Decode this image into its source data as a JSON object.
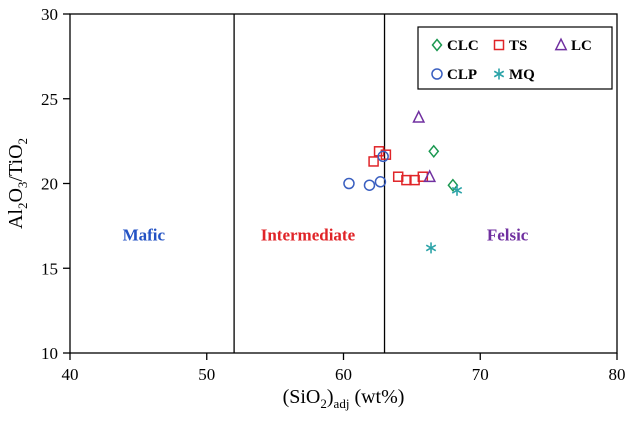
{
  "chart_data": {
    "type": "scatter",
    "title": "",
    "xlabel_parts": [
      {
        "text": "(SiO"
      },
      {
        "text": "2",
        "sub": true
      },
      {
        "text": ")"
      },
      {
        "text": "adj",
        "sub": true
      },
      {
        "text": " (wt%)"
      }
    ],
    "ylabel_parts": [
      {
        "text": "Al"
      },
      {
        "text": "2",
        "sub": true
      },
      {
        "text": "O"
      },
      {
        "text": "3",
        "sub": true
      },
      {
        "text": "/TiO"
      },
      {
        "text": "2",
        "sub": true
      }
    ],
    "xlim": [
      40,
      80
    ],
    "ylim": [
      10,
      30
    ],
    "x_ticks": [
      40,
      50,
      60,
      70,
      80
    ],
    "y_ticks": [
      10,
      15,
      20,
      25,
      30
    ],
    "grid": false,
    "boundary_lines_x": [
      52,
      63
    ],
    "regions": [
      {
        "label": "Mafic",
        "x": 45.4,
        "y": 17.0,
        "color": "#2453c4"
      },
      {
        "label": "Intermediate",
        "x": 57.4,
        "y": 17.0,
        "color": "#e02428"
      },
      {
        "label": "Felsic",
        "x": 72.0,
        "y": 17.0,
        "color": "#7030a0"
      }
    ],
    "series": [
      {
        "name": "CLC",
        "marker": "diamond",
        "color": "#1a9850",
        "points": [
          [
            66.6,
            21.9
          ],
          [
            68.0,
            19.9
          ]
        ]
      },
      {
        "name": "TS",
        "marker": "square",
        "color": "#e02428",
        "points": [
          [
            62.2,
            21.3
          ],
          [
            62.6,
            21.9
          ],
          [
            63.1,
            21.7
          ],
          [
            64.0,
            20.4
          ],
          [
            64.6,
            20.2
          ],
          [
            65.2,
            20.2
          ],
          [
            65.8,
            20.4
          ]
        ]
      },
      {
        "name": "LC",
        "marker": "triangle",
        "color": "#7030a0",
        "points": [
          [
            65.5,
            23.9
          ],
          [
            66.3,
            20.4
          ]
        ]
      },
      {
        "name": "CLP",
        "marker": "circle",
        "color": "#3a5fc0",
        "points": [
          [
            60.4,
            20.0
          ],
          [
            61.9,
            19.9
          ],
          [
            62.7,
            20.1
          ],
          [
            62.9,
            21.6
          ]
        ]
      },
      {
        "name": "MQ",
        "marker": "asterisk",
        "color": "#2ba3a8",
        "points": [
          [
            66.4,
            16.2
          ],
          [
            68.3,
            19.6
          ]
        ]
      }
    ],
    "legend": {
      "order": [
        "CLC",
        "TS",
        "LC",
        "CLP",
        "MQ"
      ],
      "columns": 3,
      "position": "top-right"
    }
  }
}
